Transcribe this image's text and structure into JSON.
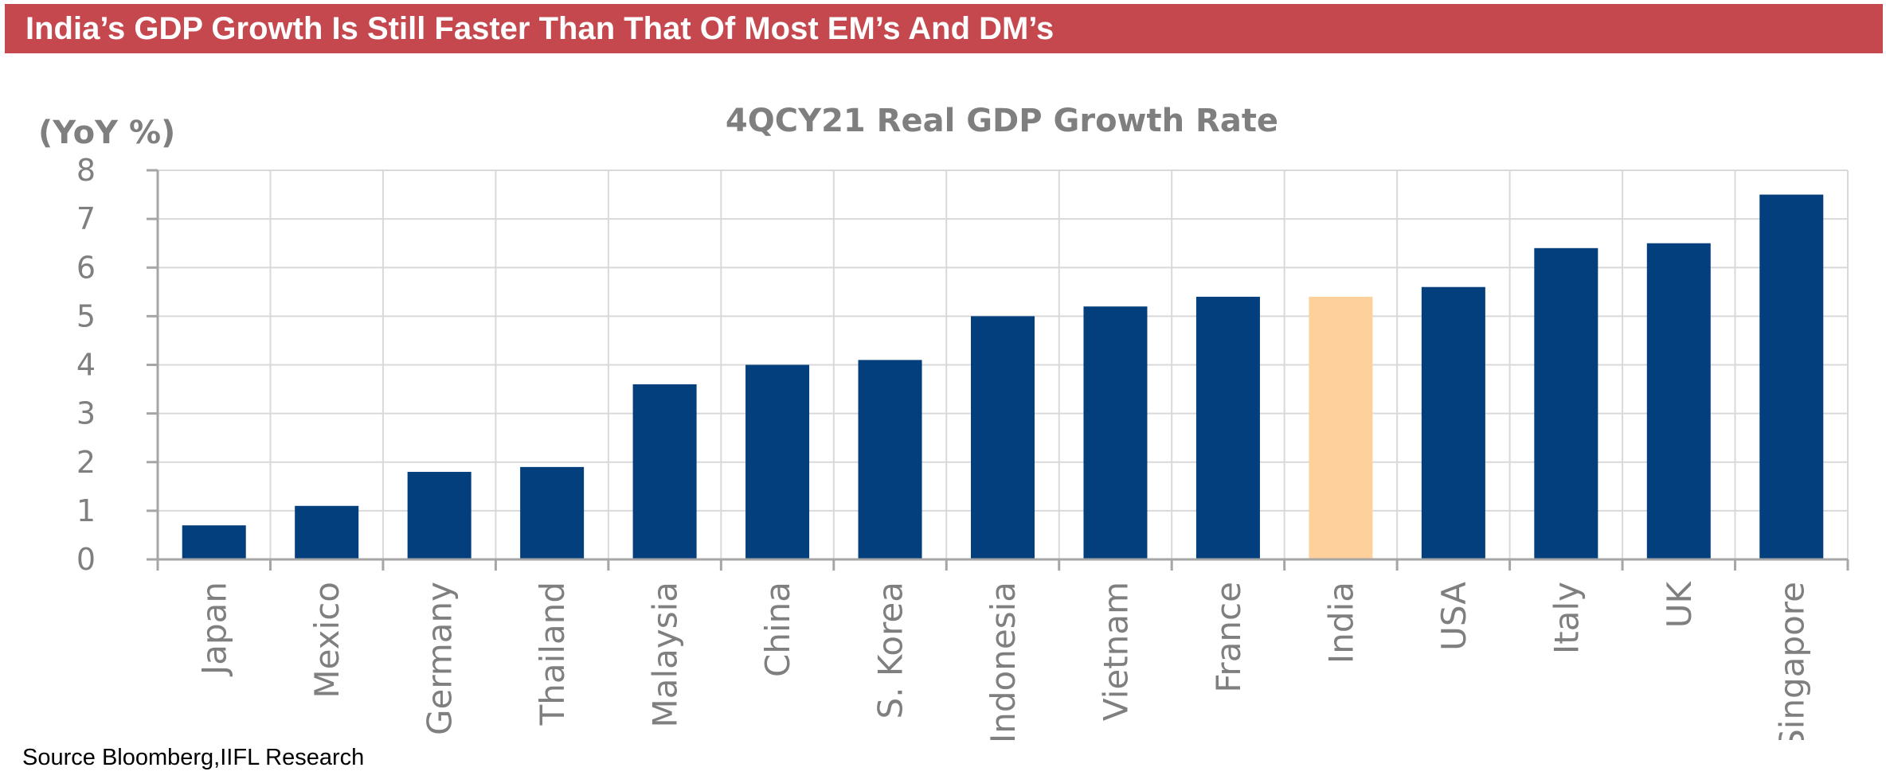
{
  "header": {
    "banner_title": "India’s GDP Growth Is Still Faster Than That Of Most EM’s And DM’s",
    "banner_color": "#c6484f"
  },
  "footer": {
    "source": "Source Bloomberg,IIFL Research"
  },
  "chart_data": {
    "type": "bar",
    "title": "4QCY21 Real GDP Growth Rate",
    "ylabel": "(YoY %)",
    "xlabel": "",
    "categories": [
      "Japan",
      "Mexico",
      "Germany",
      "Thailand",
      "Malaysia",
      "China",
      "S. Korea",
      "Indonesia",
      "Vietnam",
      "France",
      "India",
      "USA",
      "Italy",
      "UK",
      "Singapore"
    ],
    "values": [
      0.7,
      1.1,
      1.8,
      1.9,
      3.6,
      4.0,
      4.1,
      5.0,
      5.2,
      5.4,
      5.4,
      5.6,
      6.4,
      6.5,
      7.5
    ],
    "ylim": [
      0,
      8
    ],
    "yticks": [
      0,
      1,
      2,
      3,
      4,
      5,
      6,
      7,
      8
    ],
    "grid": true,
    "legend": "none",
    "bar_color": "#033f7c",
    "highlight_category": "India",
    "highlight_color": "#fdd09c"
  }
}
